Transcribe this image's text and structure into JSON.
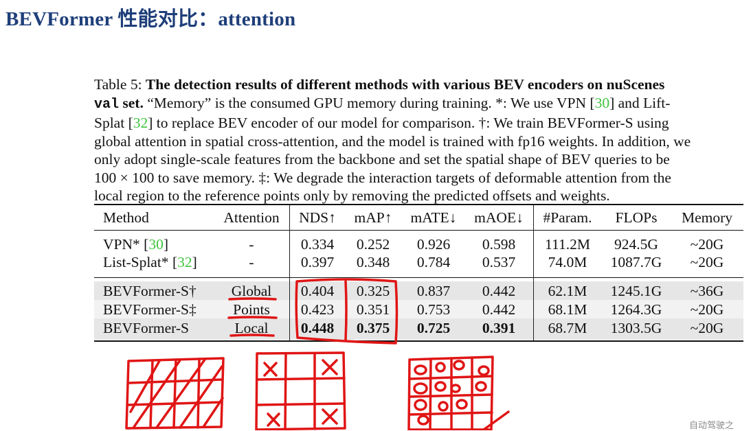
{
  "slide": {
    "title": "BEVFormer 性能对比：attention"
  },
  "caption": {
    "table_label": "Table 5:",
    "bold_title": "The detection results of different methods with various BEV encoders on nuScenes",
    "val_word": "val",
    "set_word": "set.",
    "line2_rest": "“Memory” is the consumed GPU memory during training. *: We use VPN [",
    "cite_vpn": "30",
    "line2_tail": "] and Lift-",
    "line3_start": "Splat [",
    "cite_splat": "32",
    "line3_rest": "] to replace BEV encoder of our model for comparison. †: We train BEVFormer-S using",
    "line4": "global attention in spatial cross-attention, and the model is trained with fp16 weights. In addition, we",
    "line5": "only adopt single-scale features from the backbone and set the spatial shape of BEV queries to be",
    "line6": "100 × 100 to save memory. ‡: We degrade the interaction targets of deformable attention from the",
    "line7": "local region to the reference points only by removing the predicted offsets and weights."
  },
  "table": {
    "headers": [
      "Method",
      "Attention",
      "NDS↑",
      "mAP↑",
      "mATE↓",
      "mAOE↓",
      "#Param.",
      "FLOPs",
      "Memory"
    ],
    "rows": [
      {
        "method": "VPN*",
        "cite": "30",
        "attention": "-",
        "nds": "0.334",
        "map": "0.252",
        "mate": "0.926",
        "maoe": "0.598",
        "param": "111.2M",
        "flops": "924.5G",
        "memory": "~20G"
      },
      {
        "method": "List-Splat*",
        "cite": "32",
        "attention": "-",
        "nds": "0.397",
        "map": "0.348",
        "mate": "0.784",
        "maoe": "0.537",
        "param": "74.0M",
        "flops": "1087.7G",
        "memory": "~20G"
      },
      {
        "method": "BEVFormer-S†",
        "cite": "",
        "attention": "Global",
        "nds": "0.404",
        "map": "0.325",
        "mate": "0.837",
        "maoe": "0.442",
        "param": "62.1M",
        "flops": "1245.1G",
        "memory": "~36G"
      },
      {
        "method": "BEVFormer-S‡",
        "cite": "",
        "attention": "Points",
        "nds": "0.423",
        "map": "0.351",
        "mate": "0.753",
        "maoe": "0.442",
        "param": "68.1M",
        "flops": "1264.3G",
        "memory": "~20G"
      },
      {
        "method": "BEVFormer-S",
        "cite": "",
        "attention": "Local",
        "nds": "0.448",
        "map": "0.375",
        "mate": "0.725",
        "maoe": "0.391",
        "param": "68.7M",
        "flops": "1303.5G",
        "memory": "~20G"
      }
    ]
  },
  "annotation": {
    "ink_color": "#e01515"
  },
  "watermark": "自动驾驶之"
}
